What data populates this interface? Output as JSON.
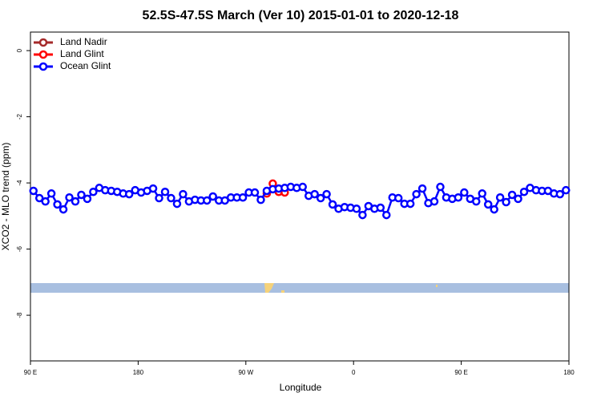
{
  "chart_data": {
    "type": "line",
    "title": "52.5S-47.5S March (Ver 10)   2015-01-01 to 2020-12-18",
    "x_label": "Longitude",
    "y_label": "XCO2 - MLO trend (ppm)",
    "xlim": [
      90,
      540
    ],
    "ylim": [
      -9.38,
      0.56
    ],
    "xticks": [
      {
        "value": 90,
        "label": "90 E"
      },
      180,
      {
        "value": 270,
        "label": "90 W"
      },
      {
        "value": 360,
        "label": "0"
      },
      {
        "value": 450,
        "label": "90 E"
      },
      {
        "value": 540,
        "label": "180"
      }
    ],
    "yticks": [
      -8,
      -6,
      -4,
      -2,
      0
    ],
    "legend": "top-left",
    "series": [
      {
        "name": "Land Nadir",
        "color": "#a52a2a",
        "x": [],
        "values": []
      },
      {
        "name": "Land Glint",
        "color": "#ff0000",
        "x": [
          287.5,
          292.5,
          297.5,
          302.5
        ],
        "values": [
          -4.32,
          -4.02,
          -4.27,
          -4.29
        ]
      },
      {
        "name": "Ocean Glint",
        "color": "#0000ff",
        "x": [
          92.5,
          97.5,
          102.5,
          107.5,
          112.5,
          117.5,
          122.5,
          127.5,
          132.5,
          137.5,
          142.5,
          147.5,
          152.5,
          157.5,
          162.5,
          167.5,
          172.5,
          177.5,
          182.5,
          187.5,
          192.5,
          197.5,
          202.5,
          207.5,
          212.5,
          217.5,
          222.5,
          227.5,
          232.5,
          237.5,
          242.5,
          247.5,
          252.5,
          257.5,
          262.5,
          267.5,
          272.5,
          277.5,
          282.5,
          287.5,
          292.5,
          297.5,
          302.5,
          307.5,
          312.5,
          317.5,
          322.5,
          327.5,
          332.5,
          337.5,
          342.5,
          347.5,
          352.5,
          357.5,
          362.5,
          367.5,
          372.5,
          377.5,
          382.5,
          387.5,
          392.5,
          397.5,
          402.5,
          407.5,
          412.5,
          417.5,
          422.5,
          427.5,
          432.5,
          437.5,
          442.5,
          447.5,
          452.5,
          457.5,
          462.5,
          467.5,
          472.5,
          477.5,
          482.5,
          487.5,
          492.5,
          497.5,
          502.5,
          507.5,
          512.5,
          517.5,
          522.5,
          527.5,
          532.5,
          537.5
        ],
        "values": [
          -4.24,
          -4.46,
          -4.56,
          -4.32,
          -4.65,
          -4.8,
          -4.44,
          -4.56,
          -4.36,
          -4.48,
          -4.27,
          -4.15,
          -4.22,
          -4.24,
          -4.27,
          -4.32,
          -4.34,
          -4.22,
          -4.29,
          -4.24,
          -4.17,
          -4.46,
          -4.27,
          -4.46,
          -4.63,
          -4.34,
          -4.56,
          -4.51,
          -4.53,
          -4.53,
          -4.41,
          -4.53,
          -4.53,
          -4.44,
          -4.44,
          -4.44,
          -4.29,
          -4.29,
          -4.51,
          -4.24,
          -4.19,
          -4.17,
          -4.15,
          -4.12,
          -4.15,
          -4.12,
          -4.39,
          -4.34,
          -4.46,
          -4.34,
          -4.65,
          -4.78,
          -4.73,
          -4.75,
          -4.78,
          -4.97,
          -4.7,
          -4.78,
          -4.75,
          -4.97,
          -4.44,
          -4.46,
          -4.63,
          -4.63,
          -4.34,
          -4.17,
          -4.61,
          -4.56,
          -4.12,
          -4.44,
          -4.48,
          -4.44,
          -4.29,
          -4.48,
          -4.56,
          -4.32,
          -4.65,
          -4.8,
          -4.44,
          -4.58,
          -4.36,
          -4.48,
          -4.27,
          -4.15,
          -4.22,
          -4.24,
          -4.24,
          -4.32,
          -4.34,
          -4.22
        ]
      }
    ]
  }
}
